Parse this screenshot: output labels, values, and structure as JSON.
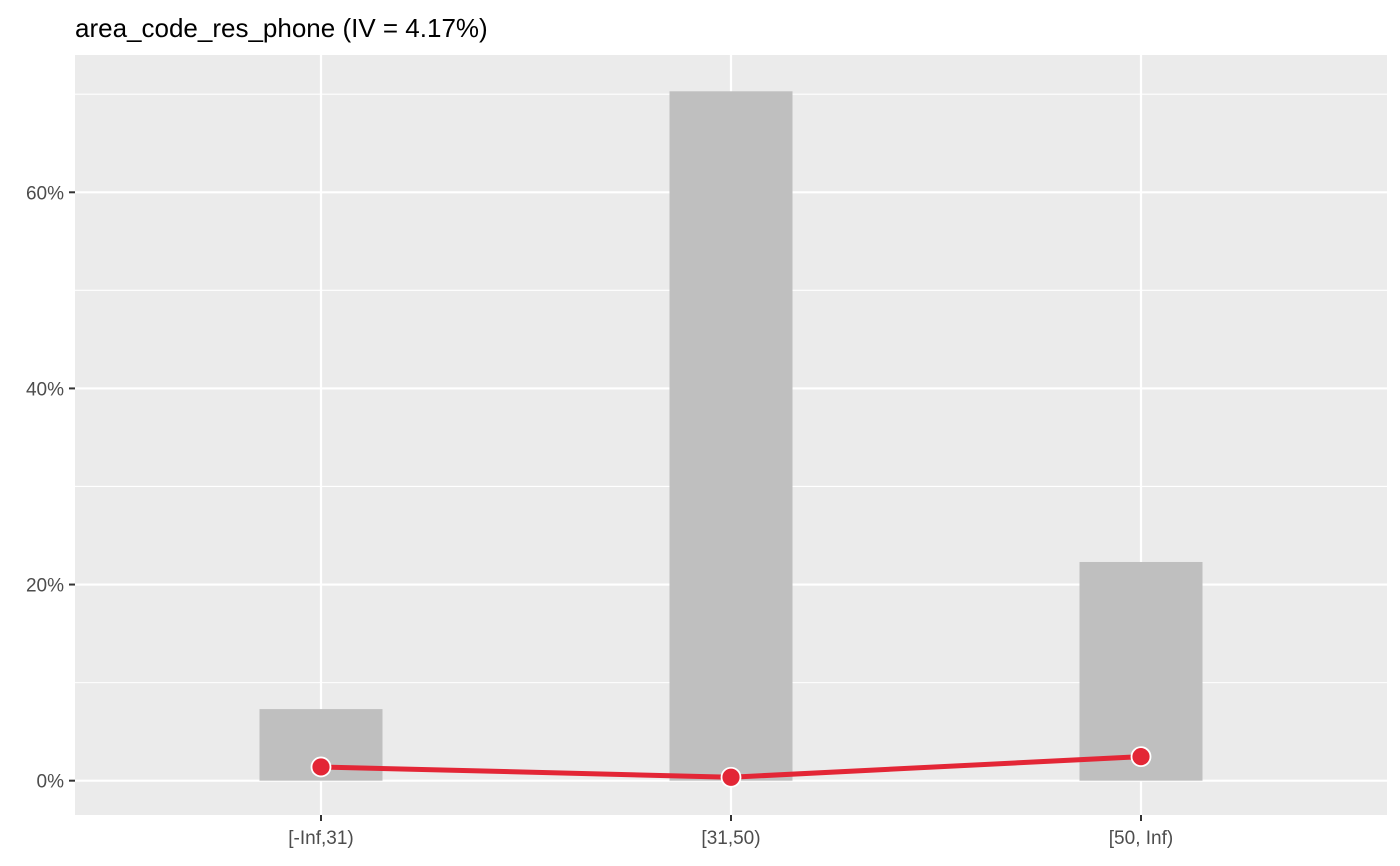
{
  "chart_data": {
    "type": "bar",
    "title": "area_code_res_phone (IV = 4.17%)",
    "xlabel": "",
    "ylabel": "",
    "categories": [
      "[-Inf,31)",
      "[31,50)",
      "[50, Inf)"
    ],
    "series": [
      {
        "type": "bar",
        "values": [
          7.3,
          70.3,
          22.3
        ]
      },
      {
        "type": "line",
        "values": [
          1.4,
          0.35,
          2.45
        ]
      }
    ],
    "ylim": [
      -3.5,
      74
    ],
    "yticks": [
      0,
      20,
      40,
      60
    ],
    "ytick_labels": [
      "0%",
      "20%",
      "40%",
      "60%"
    ],
    "grid": true,
    "colors": {
      "panel_background": "#ebebeb",
      "grid": "#ffffff",
      "bar_fill": "#bfbfbf",
      "line": "#e32636",
      "point_stroke": "#ffffff"
    }
  }
}
